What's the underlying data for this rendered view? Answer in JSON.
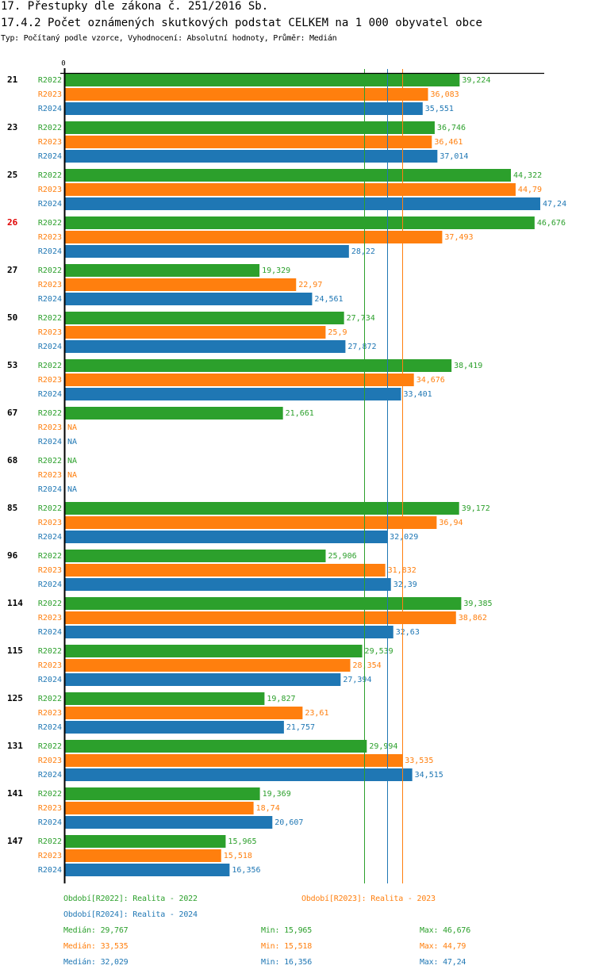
{
  "header": {
    "title": "17. Přestupky dle zákona č. 251/2016 Sb.",
    "subtitle": "17.4.2 Počet oznámených skutkových podstat CELKEM na 1 000 obyvatel obce",
    "description": "Typ: Počítaný podle vzorce, Vyhodnocení: Absolutní hodnoty, Průměr: Medián"
  },
  "colors": {
    "R2022": "#2ca02c",
    "R2023": "#ff7f0e",
    "R2024": "#1f77b4",
    "highlight": "#e00000",
    "axis": "#000000"
  },
  "chart_data": {
    "type": "bar",
    "orientation": "horizontal",
    "title": "17.4.2 Počet oznámených skutkových podstat CELKEM na 1 000 obyvatel obce",
    "xlabel": "",
    "ylabel": "",
    "axis_zero_label": "0",
    "xlim": [
      0,
      47.24
    ],
    "grid": false,
    "decimal_separator": ",",
    "highlighted_category": "26",
    "categories": [
      "21",
      "23",
      "25",
      "26",
      "27",
      "50",
      "53",
      "67",
      "68",
      "85",
      "96",
      "114",
      "115",
      "125",
      "131",
      "141",
      "147"
    ],
    "series": [
      {
        "name": "R2022",
        "values": [
          39.224,
          36.746,
          44.322,
          46.676,
          19.329,
          27.734,
          38.419,
          21.661,
          null,
          39.172,
          25.906,
          39.385,
          29.539,
          19.827,
          29.994,
          19.369,
          15.965
        ]
      },
      {
        "name": "R2023",
        "values": [
          36.083,
          36.461,
          44.79,
          37.493,
          22.97,
          25.9,
          34.676,
          null,
          null,
          36.94,
          31.832,
          38.862,
          28.354,
          23.61,
          33.535,
          18.74,
          15.518
        ]
      },
      {
        "name": "R2024",
        "values": [
          35.551,
          37.014,
          47.24,
          28.22,
          24.561,
          27.872,
          33.401,
          null,
          null,
          32.029,
          32.39,
          32.63,
          27.394,
          21.757,
          34.515,
          20.607,
          16.356
        ]
      }
    ],
    "na_label": "NA",
    "medians": {
      "R2022": 29.767,
      "R2023": 33.535,
      "R2024": 32.029
    },
    "legend": [
      {
        "series": "R2022",
        "text": "Období[R2022]: Realita - 2022"
      },
      {
        "series": "R2023",
        "text": "Období[R2023]: Realita - 2023"
      },
      {
        "series": "R2024",
        "text": "Období[R2024]: Realita - 2024"
      }
    ],
    "stats": [
      {
        "series": "R2022",
        "median": "Medián: 29,767",
        "min": "Min: 15,965",
        "max": "Max: 46,676"
      },
      {
        "series": "R2023",
        "median": "Medián: 33,535",
        "min": "Min: 15,518",
        "max": "Max: 44,79"
      },
      {
        "series": "R2024",
        "median": "Medián: 32,029",
        "min": "Min: 16,356",
        "max": "Max: 47,24"
      }
    ]
  }
}
